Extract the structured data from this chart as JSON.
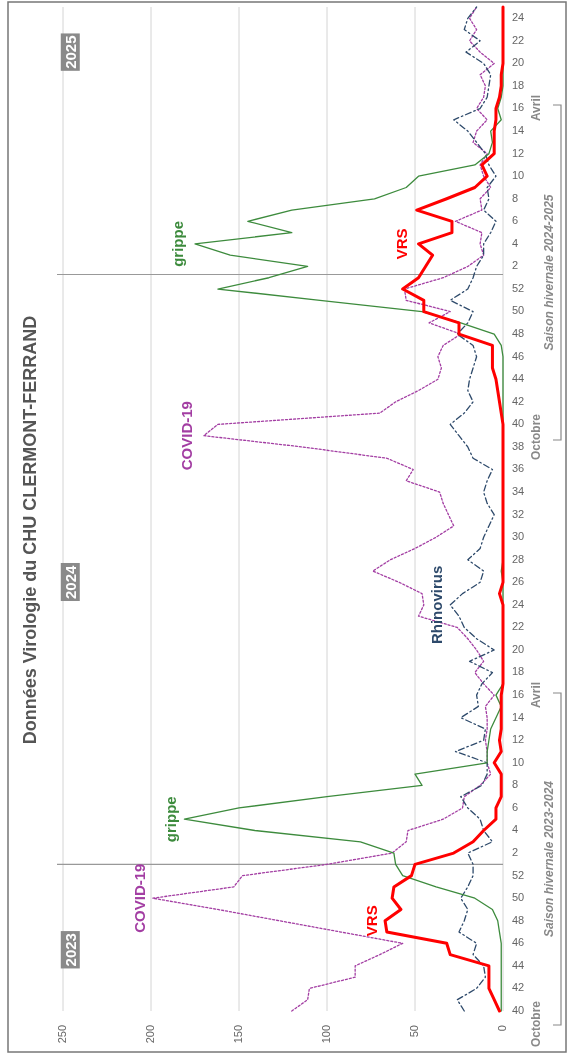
{
  "chart_data": {
    "type": "line",
    "orientation": "horizontal",
    "title": "Données Virologie du CHU CLERMONT-FERRAND",
    "x": [
      "2023-10-02",
      "2023-10-09",
      "2023-10-16",
      "2023-10-23",
      "2023-10-30",
      "2023-11-06",
      "2023-11-13",
      "2023-11-20",
      "2023-11-27",
      "2023-12-04",
      "2023-12-11",
      "2023-12-18",
      "2023-12-25",
      "2024-01-01",
      "2024-01-08",
      "2024-01-15",
      "2024-01-22",
      "2024-01-29",
      "2024-02-05",
      "2024-02-12",
      "2024-02-19",
      "2024-02-26",
      "2024-03-04",
      "2024-03-11",
      "2024-03-18",
      "2024-03-25",
      "2024-04-01",
      "2024-04-08",
      "2024-04-15",
      "2024-04-22",
      "2024-04-29",
      "2024-05-06",
      "2024-05-13",
      "2024-05-20",
      "2024-05-27",
      "2024-06-03",
      "2024-06-10",
      "2024-06-17",
      "2024-06-24",
      "2024-07-01",
      "2024-07-08",
      "2024-07-15",
      "2024-07-22",
      "2024-07-29",
      "2024-08-05",
      "2024-08-12",
      "2024-08-19",
      "2024-08-26",
      "2024-09-02",
      "2024-09-09",
      "2024-09-16",
      "2024-09-23",
      "2024-09-30",
      "2024-10-07",
      "2024-10-14",
      "2024-10-21",
      "2024-10-28",
      "2024-11-04",
      "2024-11-11",
      "2024-11-18",
      "2024-11-25",
      "2024-12-02",
      "2024-12-09",
      "2024-12-16",
      "2024-12-23",
      "2024-12-30",
      "2025-01-06",
      "2025-01-13",
      "2025-01-20",
      "2025-01-27",
      "2025-02-03",
      "2025-02-10",
      "2025-02-17",
      "2025-02-24",
      "2025-03-03",
      "2025-03-10",
      "2025-03-17",
      "2025-03-24",
      "2025-03-31",
      "2025-04-07",
      "2025-04-14",
      "2025-04-21",
      "2025-04-28",
      "2025-05-05",
      "2025-05-12",
      "2025-05-19",
      "2025-05-26",
      "2025-06-02",
      "2025-06-09",
      "2025-06-16"
    ],
    "ylim": [
      "2023-10-02",
      "2025-06-16"
    ],
    "yticks": [
      {
        "value": "2023-10-02",
        "label": "40"
      },
      {
        "value": "2023-10-16",
        "label": "42"
      },
      {
        "value": "2023-10-30",
        "label": "44"
      },
      {
        "value": "2023-11-13",
        "label": "46"
      },
      {
        "value": "2023-11-27",
        "label": "48"
      },
      {
        "value": "2023-12-11",
        "label": "50"
      },
      {
        "value": "2023-12-25",
        "label": "52"
      },
      {
        "value": "2024-01-08",
        "label": "2"
      },
      {
        "value": "2024-01-22",
        "label": "4"
      },
      {
        "value": "2024-02-05",
        "label": "6"
      },
      {
        "value": "2024-02-19",
        "label": "8"
      },
      {
        "value": "2024-03-04",
        "label": "10"
      },
      {
        "value": "2024-03-18",
        "label": "12"
      },
      {
        "value": "2024-04-01",
        "label": "14"
      },
      {
        "value": "2024-04-15",
        "label": "16"
      },
      {
        "value": "2024-04-29",
        "label": "18"
      },
      {
        "value": "2024-05-13",
        "label": "20"
      },
      {
        "value": "2024-05-27",
        "label": "22"
      },
      {
        "value": "2024-06-10",
        "label": "24"
      },
      {
        "value": "2024-06-24",
        "label": "26"
      },
      {
        "value": "2024-07-08",
        "label": "28"
      },
      {
        "value": "2024-07-22",
        "label": "30"
      },
      {
        "value": "2024-08-05",
        "label": "32"
      },
      {
        "value": "2024-08-19",
        "label": "34"
      },
      {
        "value": "2024-09-02",
        "label": "36"
      },
      {
        "value": "2024-09-16",
        "label": "38"
      },
      {
        "value": "2024-09-30",
        "label": "40"
      },
      {
        "value": "2024-10-14",
        "label": "42"
      },
      {
        "value": "2024-10-28",
        "label": "44"
      },
      {
        "value": "2024-11-11",
        "label": "46"
      },
      {
        "value": "2024-11-25",
        "label": "48"
      },
      {
        "value": "2024-12-09",
        "label": "50"
      },
      {
        "value": "2024-12-23",
        "label": "52"
      },
      {
        "value": "2025-01-06",
        "label": "2"
      },
      {
        "value": "2025-01-20",
        "label": "4"
      },
      {
        "value": "2025-02-03",
        "label": "6"
      },
      {
        "value": "2025-02-17",
        "label": "8"
      },
      {
        "value": "2025-03-03",
        "label": "10"
      },
      {
        "value": "2025-03-17",
        "label": "12"
      },
      {
        "value": "2025-03-31",
        "label": "14"
      },
      {
        "value": "2025-04-14",
        "label": "16"
      },
      {
        "value": "2025-04-28",
        "label": "18"
      },
      {
        "value": "2025-05-12",
        "label": "20"
      },
      {
        "value": "2025-05-26",
        "label": "22"
      },
      {
        "value": "2025-06-09",
        "label": "24"
      }
    ],
    "xlim": [
      250,
      0
    ],
    "xticks": [
      250,
      200,
      150,
      100,
      50,
      0
    ],
    "grid": "x",
    "series": [
      {
        "name": "COVID-19",
        "color": "#a33ea3",
        "line_style": "dotted",
        "values": [
          120,
          111,
          110,
          84,
          84,
          70,
          57,
          92,
          127,
          162,
          199,
          153,
          148,
          100,
          63,
          55,
          54,
          34,
          23,
          22,
          13,
          7,
          9,
          9,
          10,
          9,
          9,
          10,
          5,
          11,
          16,
          11,
          15,
          20,
          26,
          48,
          45,
          46,
          59,
          74,
          64,
          50,
          38,
          28,
          31,
          34,
          36,
          55,
          51,
          66,
          114,
          170,
          162,
          70,
          61,
          48,
          37,
          35,
          37,
          34,
          24,
          42,
          30,
          55,
          56,
          34,
          20,
          11,
          13,
          12,
          27,
          12,
          13,
          7,
          11,
          13,
          9,
          17,
          15,
          9,
          15,
          11,
          10,
          13,
          5,
          13,
          19,
          15,
          19,
          15
        ]
      },
      {
        "name": "Rhinovirus",
        "color": "#2e4a6b",
        "line_style": "dashed",
        "values": [
          22,
          26,
          15,
          10,
          11,
          17,
          15,
          25,
          22,
          20,
          24,
          20,
          17,
          17,
          20,
          6,
          11,
          13,
          20,
          24,
          12,
          9,
          9,
          27,
          11,
          10,
          24,
          14,
          15,
          12,
          6,
          19,
          5,
          15,
          22,
          25,
          30,
          23,
          13,
          11,
          20,
          13,
          11,
          8,
          5,
          9,
          11,
          9,
          6,
          17,
          20,
          25,
          30,
          22,
          17,
          20,
          19,
          17,
          15,
          17,
          26,
          20,
          17,
          30,
          20,
          17,
          15,
          11,
          11,
          7,
          4,
          11,
          8,
          9,
          4,
          8,
          10,
          15,
          20,
          28,
          13,
          9,
          8,
          7,
          11,
          21,
          13,
          22,
          20,
          15
        ]
      },
      {
        "name": "grippe",
        "color": "#3d8b3d",
        "line_style": "solid",
        "values": [
          1,
          1,
          1,
          1,
          1,
          1,
          1,
          2,
          3,
          6,
          16,
          38,
          57,
          61,
          62,
          81,
          141,
          181,
          150,
          100,
          46,
          50,
          9,
          9,
          8,
          7,
          4,
          1,
          4,
          0,
          0,
          0,
          0,
          0,
          0,
          0,
          0,
          0,
          0,
          1,
          0,
          0,
          0,
          0,
          0,
          0,
          0,
          0,
          0,
          0,
          0,
          0,
          0,
          0,
          0,
          0,
          0,
          0,
          0,
          1,
          5,
          24,
          46,
          104,
          162,
          133,
          111,
          155,
          175,
          120,
          145,
          120,
          73,
          55,
          48,
          16,
          8,
          6,
          7,
          1,
          3,
          1,
          0,
          0,
          0,
          null,
          null,
          null,
          null,
          null
        ]
      },
      {
        "name": "VRS",
        "color": "#ff0000",
        "line_style": "solid",
        "values": [
          2,
          5,
          8,
          8,
          8,
          30,
          32,
          66,
          67,
          58,
          63,
          62,
          52,
          50,
          28,
          17,
          11,
          4,
          4,
          1,
          1,
          1,
          5,
          1,
          2,
          1,
          1,
          1,
          1,
          0,
          0,
          0,
          0,
          0,
          0,
          0,
          0,
          2,
          0,
          0,
          0,
          0,
          0,
          0,
          0,
          0,
          0,
          0,
          0,
          0,
          0,
          0,
          0,
          1,
          2,
          3,
          4,
          6,
          6,
          6,
          25,
          25,
          45,
          45,
          57,
          48,
          44,
          40,
          48,
          29,
          29,
          49,
          32,
          16,
          9,
          12,
          5,
          5,
          5,
          4,
          4,
          2,
          1,
          1,
          0,
          0,
          0,
          0,
          0,
          0
        ]
      }
    ],
    "ref_lines": [
      {
        "axis": "y",
        "value": "2024-01-01"
      },
      {
        "axis": "y",
        "value": "2025-01-01"
      }
    ],
    "annotations": [
      {
        "text": "2023",
        "y": "2023-11-09",
        "x": 245
      },
      {
        "text": "2024",
        "y": "2024-06-24",
        "x": 245
      },
      {
        "text": "2025",
        "y": "2025-05-19",
        "x": 245
      },
      {
        "text": "COVID-19",
        "y": "2024-09-23",
        "x": 172
      },
      {
        "text": "grippe",
        "y": "2025-01-20",
        "x": 177
      },
      {
        "text": "VRS",
        "y": "2025-01-20",
        "x": 50
      },
      "Octobre",
      "Avril",
      "Saison hivernale 2023-2024",
      "Octobre",
      "Avril",
      "Saison hivernale 2024-2025"
    ]
  }
}
